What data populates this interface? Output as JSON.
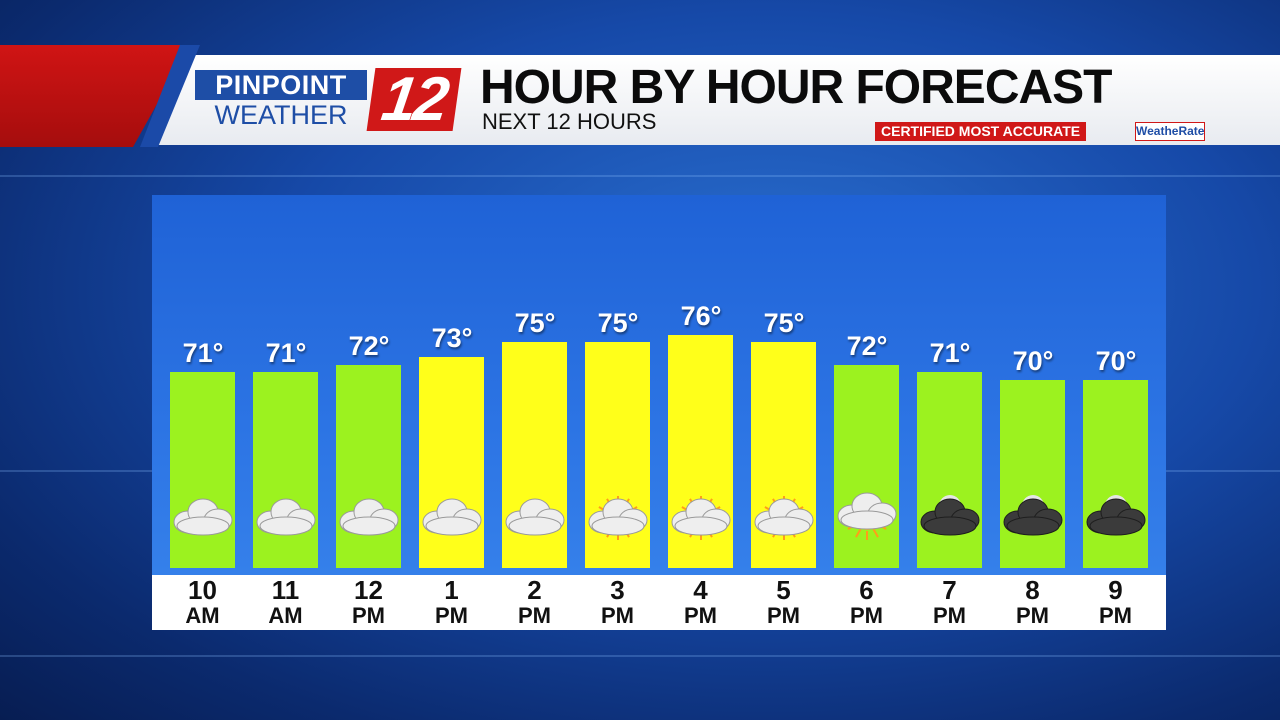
{
  "brand": {
    "logo_top": "PINPOINT",
    "logo_bottom": "WEATHER",
    "logo_number": "12",
    "certified_label": "CERTIFIED MOST ACCURATE",
    "weatherate_label": "WeatheRate"
  },
  "header": {
    "title": "HOUR BY HOUR FORECAST",
    "subtitle": "NEXT 12 HOURS"
  },
  "colors": {
    "bar_yellow": "#ffff1a",
    "bar_green": "#9cf21f",
    "brand_red": "#d01818",
    "brand_blue": "#1e4ea6"
  },
  "chart_data": {
    "type": "bar",
    "categories": [
      "10 AM",
      "11 AM",
      "12 PM",
      "1 PM",
      "2 PM",
      "3 PM",
      "4 PM",
      "5 PM",
      "6 PM",
      "7 PM",
      "8 PM",
      "9 PM"
    ],
    "hours": [
      {
        "num": "10",
        "ampm": "AM",
        "temp": 71,
        "temp_label": "71°",
        "icon": "cloudy-icon"
      },
      {
        "num": "11",
        "ampm": "AM",
        "temp": 71,
        "temp_label": "71°",
        "icon": "cloudy-icon"
      },
      {
        "num": "12",
        "ampm": "PM",
        "temp": 72,
        "temp_label": "72°",
        "icon": "cloudy-icon"
      },
      {
        "num": "1",
        "ampm": "PM",
        "temp": 73,
        "temp_label": "73°",
        "icon": "cloudy-icon"
      },
      {
        "num": "2",
        "ampm": "PM",
        "temp": 75,
        "temp_label": "75°",
        "icon": "cloudy-icon"
      },
      {
        "num": "3",
        "ampm": "PM",
        "temp": 75,
        "temp_label": "75°",
        "icon": "partly-cloudy-icon"
      },
      {
        "num": "4",
        "ampm": "PM",
        "temp": 76,
        "temp_label": "76°",
        "icon": "partly-cloudy-icon"
      },
      {
        "num": "5",
        "ampm": "PM",
        "temp": 75,
        "temp_label": "75°",
        "icon": "partly-cloudy-icon"
      },
      {
        "num": "6",
        "ampm": "PM",
        "temp": 72,
        "temp_label": "72°",
        "icon": "mostly-sunny-icon"
      },
      {
        "num": "7",
        "ampm": "PM",
        "temp": 71,
        "temp_label": "71°",
        "icon": "night-cloudy-icon"
      },
      {
        "num": "8",
        "ampm": "PM",
        "temp": 70,
        "temp_label": "70°",
        "icon": "night-cloudy-icon"
      },
      {
        "num": "9",
        "ampm": "PM",
        "temp": 70,
        "temp_label": "70°",
        "icon": "night-cloudy-icon"
      }
    ],
    "values": [
      71,
      71,
      72,
      73,
      75,
      75,
      76,
      75,
      72,
      71,
      70,
      70
    ],
    "unit": "°F",
    "title": "HOUR BY HOUR FORECAST",
    "xlabel": "",
    "ylabel": "",
    "grid": false
  }
}
